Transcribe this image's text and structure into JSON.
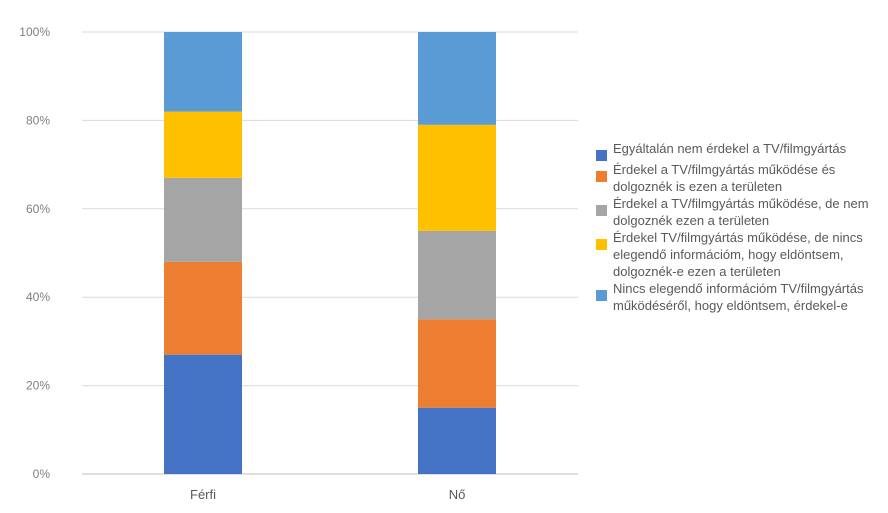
{
  "chart_data": {
    "type": "bar",
    "stacked": true,
    "normalized": true,
    "categories": [
      "Férfi",
      "Nő"
    ],
    "series": [
      {
        "name": "Egyáltalán nem érdekel a TV/filmgyártás",
        "color": "#4472c4",
        "values": [
          27,
          15
        ]
      },
      {
        "name": "Érdekel a TV/filmgyártás működése és dolgoznék is ezen a területen",
        "color": "#ed7d31",
        "values": [
          21,
          20
        ]
      },
      {
        "name": "Érdekel a TV/filmgyártás működése, de nem dolgoznék ezen a területen",
        "color": "#a5a5a5",
        "values": [
          19,
          20
        ]
      },
      {
        "name": "Érdekel TV/filmgyártás működése, de nincs elegendő információm, hogy eldöntsem, dolgoznék-e ezen a területen",
        "color": "#ffc000",
        "values": [
          15,
          24
        ]
      },
      {
        "name": "Nincs elegendő információm TV/filmgyártás működéséről, hogy eldöntsem, érdekel-e",
        "color": "#5b9bd5",
        "values": [
          18,
          21
        ]
      }
    ],
    "yticks": [
      "0%",
      "20%",
      "40%",
      "60%",
      "80%",
      "100%"
    ],
    "ylim": [
      0,
      100
    ],
    "xlabel": "",
    "ylabel": "",
    "grid": true,
    "legend_position": "right"
  }
}
